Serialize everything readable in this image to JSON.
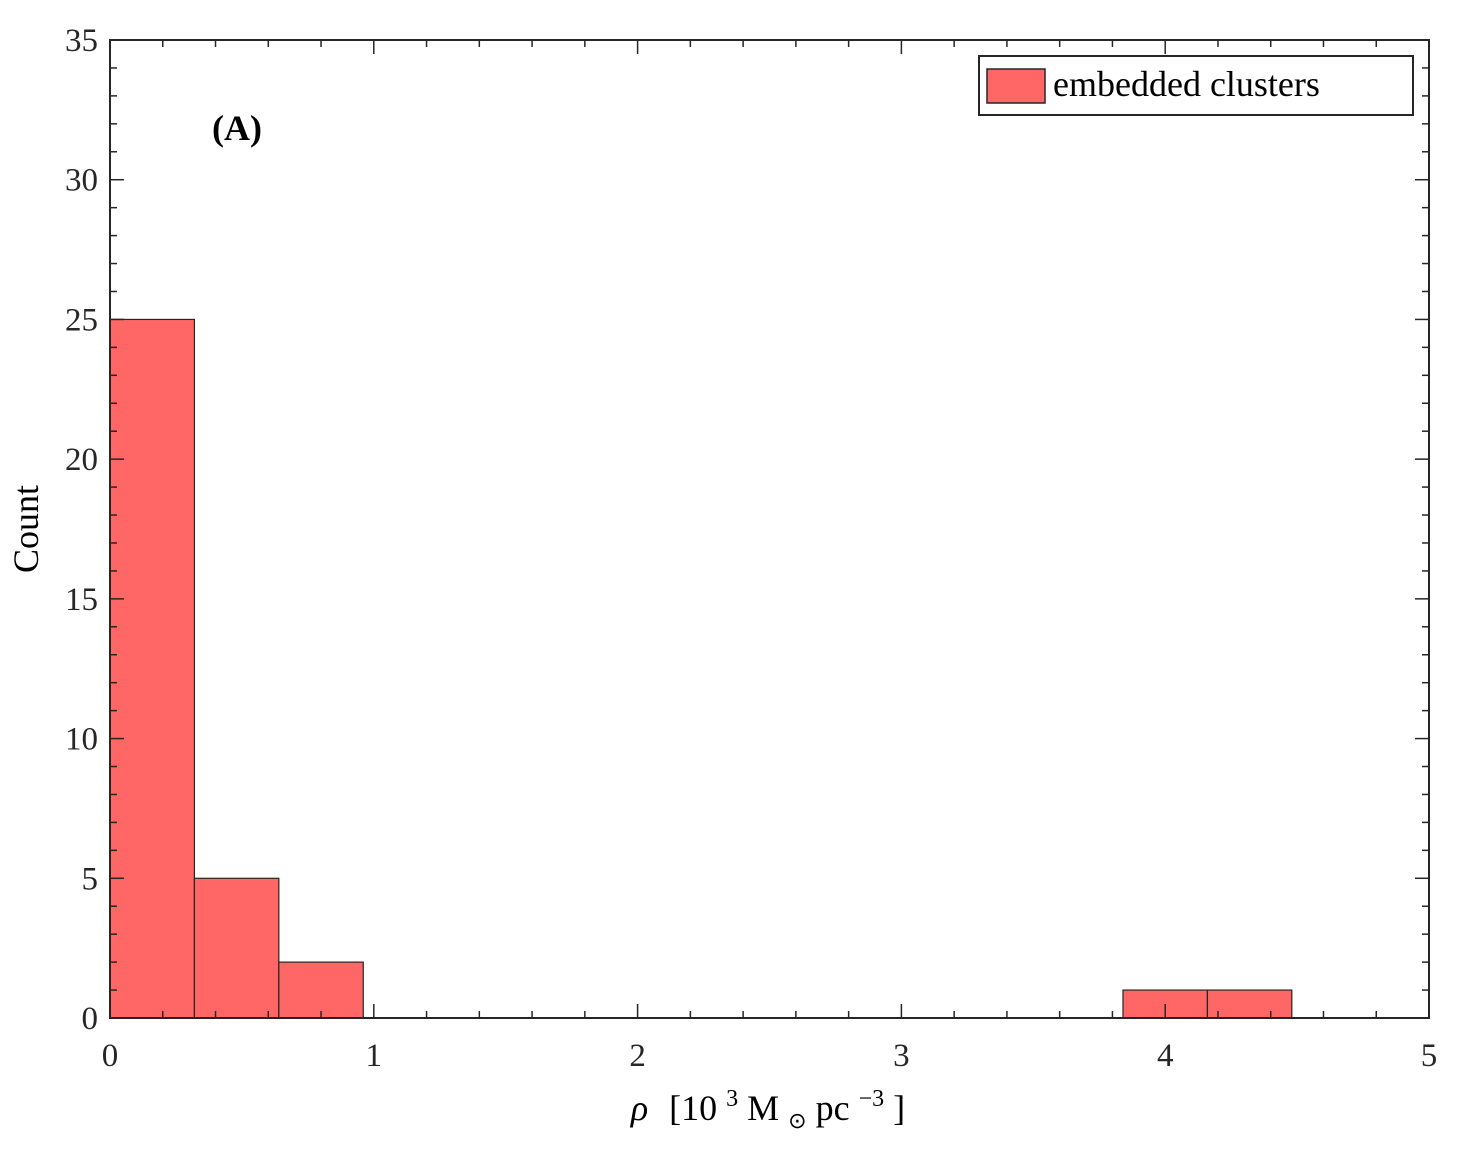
{
  "chart_data": {
    "type": "bar",
    "subtype": "histogram",
    "bin_edges": [
      0,
      0.32,
      0.64,
      0.96,
      1.28,
      1.6,
      1.92,
      2.24,
      2.56,
      2.88,
      3.2,
      3.52,
      3.84,
      4.16,
      4.48
    ],
    "values": [
      25,
      5,
      2,
      0,
      0,
      0,
      0,
      0,
      0,
      0,
      0,
      0,
      1,
      1
    ],
    "series": [
      {
        "name": "embedded clusters",
        "color": "#ff6666"
      }
    ],
    "panel_label": "(A)",
    "xlabel": {
      "symbol": "ρ",
      "open": "[10",
      "exp1": "3",
      "mass": " M",
      "sun": "⊙",
      "unit": " pc",
      "exp2": "−3",
      "close": "]"
    },
    "ylabel": "Count",
    "xlim": [
      0,
      5
    ],
    "ylim": [
      0,
      35
    ],
    "xticks": [
      0,
      1,
      2,
      3,
      4,
      5
    ],
    "yticks": [
      0,
      5,
      10,
      15,
      20,
      25,
      30,
      35
    ],
    "x_minor_step": 0.2,
    "y_minor_step": 1,
    "grid": false,
    "legend_position": "top-right"
  }
}
